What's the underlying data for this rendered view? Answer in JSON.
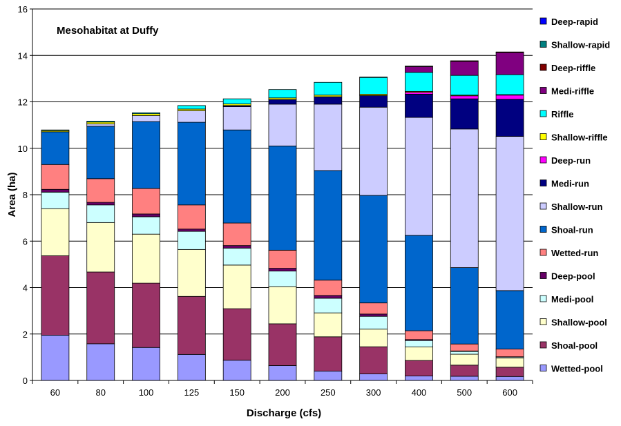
{
  "chart_data": {
    "type": "bar",
    "stacked": true,
    "title": "Mesohabitat at Duffy",
    "xlabel": "Discharge (cfs)",
    "ylabel": "Area (ha)",
    "ylim": [
      0,
      16
    ],
    "yticks": [
      0,
      2,
      4,
      6,
      8,
      10,
      12,
      14,
      16
    ],
    "grid": true,
    "legend_position": "right",
    "categories": [
      "60",
      "80",
      "100",
      "125",
      "150",
      "200",
      "250",
      "300",
      "400",
      "500",
      "600"
    ],
    "series": [
      {
        "name": "Wetted-pool",
        "color": "#9999FF",
        "values": [
          1.95,
          1.58,
          1.42,
          1.12,
          0.87,
          0.64,
          0.4,
          0.28,
          0.19,
          0.18,
          0.17
        ]
      },
      {
        "name": "Shoal-pool",
        "color": "#993366",
        "values": [
          3.42,
          3.09,
          2.77,
          2.5,
          2.22,
          1.8,
          1.48,
          1.17,
          0.67,
          0.48,
          0.4
        ]
      },
      {
        "name": "Shallow-pool",
        "color": "#FFFFCC",
        "values": [
          2.03,
          2.13,
          2.11,
          2.02,
          1.88,
          1.6,
          1.03,
          0.76,
          0.58,
          0.47,
          0.4
        ]
      },
      {
        "name": "Medi-pool",
        "color": "#CCFFFF",
        "values": [
          0.71,
          0.76,
          0.75,
          0.78,
          0.73,
          0.67,
          0.63,
          0.55,
          0.28,
          0.12,
          0.04
        ]
      },
      {
        "name": "Deep-pool",
        "color": "#660066",
        "values": [
          0.12,
          0.11,
          0.12,
          0.1,
          0.11,
          0.12,
          0.12,
          0.1,
          0.04,
          0.02,
          0.01
        ]
      },
      {
        "name": "Wetted-run",
        "color": "#FF8080",
        "values": [
          1.07,
          1.02,
          1.1,
          1.04,
          0.97,
          0.78,
          0.66,
          0.48,
          0.38,
          0.3,
          0.33
        ]
      },
      {
        "name": "Shoal-run",
        "color": "#0066CC",
        "values": [
          1.41,
          2.26,
          2.88,
          3.56,
          4.01,
          4.49,
          4.72,
          4.63,
          4.11,
          3.29,
          2.52
        ]
      },
      {
        "name": "Shallow-run",
        "color": "#CCCCFF",
        "values": [
          0.0,
          0.1,
          0.26,
          0.5,
          1.0,
          1.8,
          2.86,
          3.8,
          5.08,
          5.97,
          6.64
        ]
      },
      {
        "name": "Medi-run",
        "color": "#000080",
        "values": [
          0.0,
          0.0,
          0.0,
          0.0,
          0.05,
          0.2,
          0.32,
          0.5,
          1.0,
          1.3,
          1.6
        ]
      },
      {
        "name": "Deep-run",
        "color": "#FF00FF",
        "values": [
          0.0,
          0.0,
          0.0,
          0.0,
          0.0,
          0.0,
          0.0,
          0.0,
          0.08,
          0.13,
          0.18
        ]
      },
      {
        "name": "Shallow-riffle",
        "color": "#FFFF00",
        "values": [
          0.05,
          0.08,
          0.08,
          0.07,
          0.07,
          0.07,
          0.07,
          0.06,
          0.04,
          0.03,
          0.02
        ]
      },
      {
        "name": "Riffle",
        "color": "#00FFFF",
        "values": [
          0.03,
          0.04,
          0.04,
          0.15,
          0.22,
          0.36,
          0.55,
          0.72,
          0.82,
          0.85,
          0.86
        ]
      },
      {
        "name": "Medi-riffle",
        "color": "#800080",
        "values": [
          0.0,
          0.0,
          0.0,
          0.0,
          0.0,
          0.0,
          0.0,
          0.02,
          0.25,
          0.6,
          0.95
        ]
      },
      {
        "name": "Deep-riffle",
        "color": "#800000",
        "values": [
          0.0,
          0.0,
          0.0,
          0.0,
          0.0,
          0.0,
          0.0,
          0.0,
          0.02,
          0.03,
          0.03
        ]
      },
      {
        "name": "Shallow-rapid",
        "color": "#008080",
        "values": [
          0,
          0,
          0,
          0,
          0,
          0,
          0,
          0,
          0,
          0,
          0
        ]
      },
      {
        "name": "Deep-rapid",
        "color": "#0000FF",
        "values": [
          0,
          0,
          0,
          0,
          0,
          0,
          0,
          0,
          0,
          0,
          0
        ]
      }
    ],
    "legend_order": [
      "Deep-rapid",
      "Shallow-rapid",
      "Deep-riffle",
      "Medi-riffle",
      "Riffle",
      "Shallow-riffle",
      "Deep-run",
      "Medi-run",
      "Shallow-run",
      "Shoal-run",
      "Wetted-run",
      "Deep-pool",
      "Medi-pool",
      "Shallow-pool",
      "Shoal-pool",
      "Wetted-pool"
    ]
  }
}
